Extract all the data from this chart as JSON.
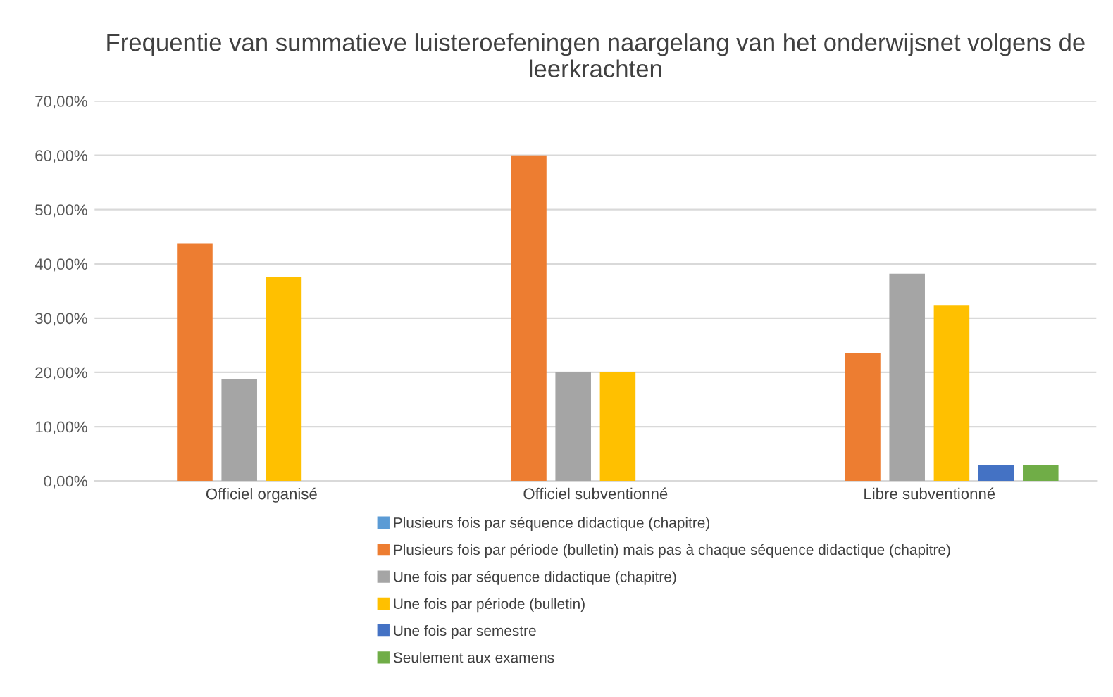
{
  "chart_data": {
    "type": "bar",
    "title": "Frequentie van summatieve luisteroefeningen naargelang van het onderwijsnet volgens de leerkrachten",
    "categories": [
      "Officiel organisé",
      "Officiel subventionné",
      "Libre subventionné"
    ],
    "series": [
      {
        "name": "Plusieurs fois par séquence didactique (chapitre)",
        "color": "#5b9bd5",
        "values": [
          0,
          0,
          0
        ]
      },
      {
        "name": "Plusieurs fois par période (bulletin) mais pas à chaque séquence didactique (chapitre)",
        "color": "#ed7d31",
        "values": [
          43.8,
          60,
          23.5
        ]
      },
      {
        "name": "Une fois par séquence didactique (chapitre)",
        "color": "#a5a5a5",
        "values": [
          18.8,
          20,
          38.2
        ]
      },
      {
        "name": "Une fois par période (bulletin)",
        "color": "#ffc000",
        "values": [
          37.5,
          20,
          32.4
        ]
      },
      {
        "name": "Une fois par semestre",
        "color": "#4472c4",
        "values": [
          0,
          0,
          2.9
        ]
      },
      {
        "name": "Seulement aux examens",
        "color": "#70ad47",
        "values": [
          0,
          0,
          2.9
        ]
      }
    ],
    "ylim": [
      0,
      70
    ],
    "yticks": [
      {
        "value": 0,
        "label": "0,00%"
      },
      {
        "value": 10,
        "label": "10,00%"
      },
      {
        "value": 20,
        "label": "20,00%"
      },
      {
        "value": 30,
        "label": "30,00%"
      },
      {
        "value": 40,
        "label": "40,00%"
      },
      {
        "value": 50,
        "label": "50,00%"
      },
      {
        "value": 60,
        "label": "60,00%"
      },
      {
        "value": 70,
        "label": "70,00%"
      }
    ],
    "grid": "y",
    "legend": "bottom"
  }
}
